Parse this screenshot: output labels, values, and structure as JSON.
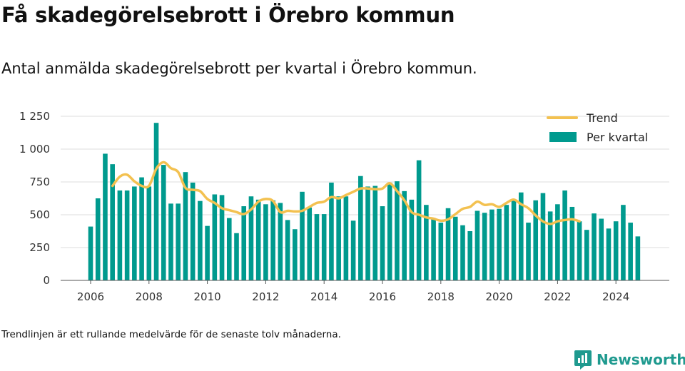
{
  "title": "Få skadegörelsebrott i Örebro kommun",
  "subtitle": "Antal anmälda skadegörelsebrott per kvartal i Örebro kommun.",
  "footnote": "Trendlinjen är ett rullande medelvärde för de senaste tolv månaderna.",
  "brand": {
    "name": "Newsworthy",
    "color": "#1f9a8f"
  },
  "chart_data": {
    "type": "bar",
    "title": "",
    "xlabel": "",
    "ylabel": "",
    "ylim": [
      0,
      1250
    ],
    "yticks": [
      0,
      250,
      500,
      750,
      1000,
      1250
    ],
    "ytick_labels": [
      "0",
      "250",
      "500",
      "750",
      "1 000",
      "1 250"
    ],
    "xticks": [
      2006,
      2008,
      2010,
      2012,
      2014,
      2016,
      2018,
      2020,
      2022,
      2024
    ],
    "xtick_labels": [
      "2006",
      "2008",
      "2010",
      "2012",
      "2014",
      "2016",
      "2018",
      "2020",
      "2022",
      "2024"
    ],
    "grid": true,
    "legend_position": "top-right",
    "colors": {
      "bars": "#009a8e",
      "trend": "#f3c150",
      "grid": "#dddddd",
      "axis": "#555555"
    },
    "series": [
      {
        "name": "Per kvartal",
        "type": "bar",
        "start": "2006 Q1",
        "values": [
          410,
          625,
          965,
          885,
          685,
          685,
          715,
          785,
          715,
          1200,
          880,
          585,
          585,
          825,
          745,
          605,
          415,
          655,
          650,
          475,
          360,
          565,
          640,
          615,
          580,
          610,
          590,
          460,
          390,
          675,
          555,
          505,
          505,
          745,
          640,
          640,
          455,
          795,
          715,
          720,
          565,
          745,
          755,
          680,
          615,
          915,
          575,
          475,
          440,
          550,
          485,
          420,
          375,
          530,
          515,
          540,
          545,
          575,
          610,
          670,
          440,
          610,
          665,
          525,
          580,
          685,
          560,
          450,
          385,
          510,
          470,
          395,
          450,
          575,
          440,
          335
        ]
      },
      {
        "name": "Trend",
        "type": "line",
        "start": "2006 Q4",
        "values": [
          720,
          790,
          805,
          755,
          720,
          720,
          850,
          900,
          855,
          825,
          705,
          690,
          680,
          620,
          590,
          550,
          535,
          520,
          505,
          540,
          600,
          620,
          605,
          520,
          530,
          525,
          530,
          560,
          590,
          600,
          635,
          625,
          650,
          675,
          700,
          700,
          695,
          700,
          740,
          680,
          610,
          520,
          500,
          480,
          470,
          455,
          465,
          505,
          545,
          560,
          600,
          575,
          580,
          560,
          590,
          615,
          580,
          550,
          495,
          450,
          430,
          450,
          460,
          465,
          450
        ]
      }
    ]
  }
}
